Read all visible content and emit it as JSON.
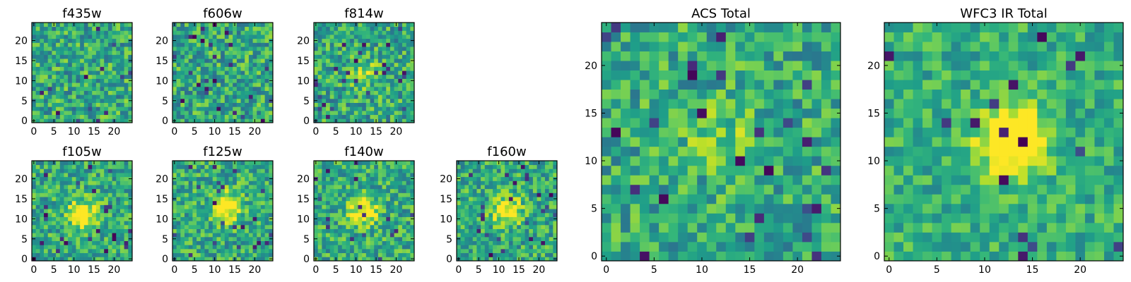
{
  "chart_data": [
    {
      "type": "heatmap",
      "title": "f435w",
      "xticks": [
        "0",
        "5",
        "10",
        "15",
        "20"
      ],
      "yticks": [
        "0",
        "5",
        "10",
        "15",
        "20"
      ],
      "xlim": [
        -0.5,
        24.5
      ],
      "ylim": [
        -0.5,
        24.5
      ],
      "grid": false,
      "colormap": "viridis",
      "peak": [
        0,
        0
      ],
      "peak_strength": 0.0,
      "noise": 0.5,
      "seed": 3
    },
    {
      "type": "heatmap",
      "title": "f606w",
      "xticks": [
        "0",
        "5",
        "10",
        "15",
        "20"
      ],
      "yticks": [
        "0",
        "5",
        "10",
        "15",
        "20"
      ],
      "xlim": [
        -0.5,
        24.5
      ],
      "ylim": [
        -0.5,
        24.5
      ],
      "grid": false,
      "colormap": "viridis",
      "peak": [
        0,
        0
      ],
      "peak_strength": 0.0,
      "noise": 0.5,
      "seed": 11
    },
    {
      "type": "heatmap",
      "title": "f814w",
      "xticks": [
        "0",
        "5",
        "10",
        "15",
        "20"
      ],
      "yticks": [
        "0",
        "5",
        "10",
        "15",
        "20"
      ],
      "xlim": [
        -0.5,
        24.5
      ],
      "ylim": [
        -0.5,
        24.5
      ],
      "grid": false,
      "colormap": "viridis",
      "peak": [
        12,
        12
      ],
      "peak_strength": 0.25,
      "noise": 0.5,
      "seed": 19
    },
    {
      "type": "heatmap",
      "title": "f105w",
      "xticks": [
        "0",
        "5",
        "10",
        "15",
        "20"
      ],
      "yticks": [
        "0",
        "5",
        "10",
        "15",
        "20"
      ],
      "xlim": [
        -0.5,
        24.5
      ],
      "ylim": [
        -0.5,
        24.5
      ],
      "grid": false,
      "colormap": "viridis",
      "peak": [
        12,
        11
      ],
      "peak_strength": 0.55,
      "noise": 0.45,
      "seed": 27
    },
    {
      "type": "heatmap",
      "title": "f125w",
      "xticks": [
        "0",
        "5",
        "10",
        "15",
        "20"
      ],
      "yticks": [
        "0",
        "5",
        "10",
        "15",
        "20"
      ],
      "xlim": [
        -0.5,
        24.5
      ],
      "ylim": [
        -0.5,
        24.5
      ],
      "grid": false,
      "colormap": "viridis",
      "peak": [
        13,
        13
      ],
      "peak_strength": 0.55,
      "noise": 0.45,
      "seed": 35
    },
    {
      "type": "heatmap",
      "title": "f140w",
      "xticks": [
        "0",
        "5",
        "10",
        "15",
        "20"
      ],
      "yticks": [
        "0",
        "5",
        "10",
        "15",
        "20"
      ],
      "xlim": [
        -0.5,
        24.5
      ],
      "ylim": [
        -0.5,
        24.5
      ],
      "grid": false,
      "colormap": "viridis",
      "peak": [
        12,
        12
      ],
      "peak_strength": 0.5,
      "noise": 0.45,
      "seed": 43
    },
    {
      "type": "heatmap",
      "title": "f160w",
      "xticks": [
        "0",
        "5",
        "10",
        "15",
        "20"
      ],
      "yticks": [
        "0",
        "5",
        "10",
        "15",
        "20"
      ],
      "xlim": [
        -0.5,
        24.5
      ],
      "ylim": [
        -0.5,
        24.5
      ],
      "grid": false,
      "colormap": "viridis",
      "peak": [
        12,
        12
      ],
      "peak_strength": 0.5,
      "noise": 0.45,
      "seed": 51
    },
    {
      "type": "heatmap",
      "title": "ACS Total",
      "xticks": [
        "0",
        "5",
        "10",
        "15",
        "20"
      ],
      "yticks": [
        "0",
        "5",
        "10",
        "15",
        "20"
      ],
      "xlim": [
        -0.5,
        24.5
      ],
      "ylim": [
        -0.5,
        24.5
      ],
      "grid": false,
      "colormap": "viridis",
      "peak": [
        12,
        12
      ],
      "peak_strength": 0.2,
      "noise": 0.45,
      "seed": 59
    },
    {
      "type": "heatmap",
      "title": "WFC3 IR Total",
      "xticks": [
        "0",
        "5",
        "10",
        "15",
        "20"
      ],
      "yticks": [
        "0",
        "5",
        "10",
        "15",
        "20"
      ],
      "xlim": [
        -0.5,
        24.5
      ],
      "ylim": [
        -0.5,
        24.5
      ],
      "grid": false,
      "colormap": "viridis",
      "peak": [
        13,
        12
      ],
      "peak_strength": 0.7,
      "noise": 0.35,
      "seed": 67
    }
  ]
}
